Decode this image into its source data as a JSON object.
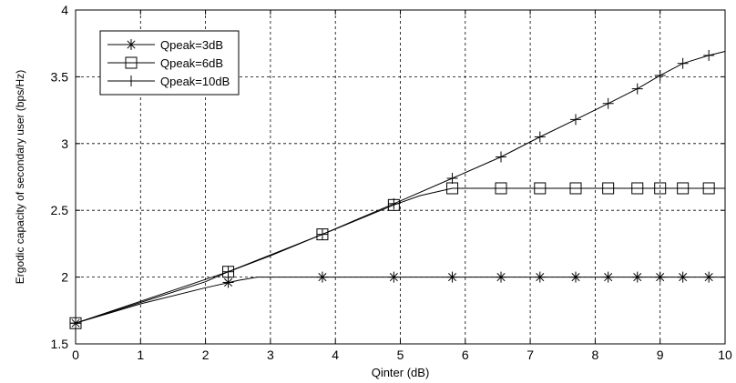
{
  "chart_data": {
    "type": "line",
    "xlabel": "Qinter (dB)",
    "ylabel": "Ergodic capacity of secondary user (bps/Hz)",
    "xlim": [
      0,
      10
    ],
    "ylim": [
      1.5,
      4
    ],
    "x_ticks": [
      "0",
      "1",
      "2",
      "3",
      "4",
      "5",
      "6",
      "7",
      "8",
      "9",
      "10"
    ],
    "y_ticks": [
      "1.5",
      "2",
      "2.5",
      "3",
      "3.5",
      "4"
    ],
    "grid": true,
    "legend_position": "top-left",
    "series": [
      {
        "name": "Qpeak=3dB",
        "marker": "asterisk",
        "line": [
          [
            0,
            1.655
          ],
          [
            1,
            1.8
          ],
          [
            2,
            1.92
          ],
          [
            2.5,
            1.975
          ],
          [
            2.8,
            2.0
          ],
          [
            10,
            2.0
          ]
        ],
        "markers": [
          [
            0,
            1.655
          ],
          [
            2.35,
            1.96
          ],
          [
            3.8,
            2.0
          ],
          [
            4.9,
            2.0
          ],
          [
            5.8,
            2.0
          ],
          [
            6.55,
            2.0
          ],
          [
            7.15,
            2.0
          ],
          [
            7.7,
            2.0
          ],
          [
            8.2,
            2.0
          ],
          [
            8.65,
            2.0
          ],
          [
            9.0,
            2.0
          ],
          [
            9.35,
            2.0
          ],
          [
            9.75,
            2.0
          ]
        ]
      },
      {
        "name": "Qpeak=6dB",
        "marker": "square",
        "line": [
          [
            0,
            1.655
          ],
          [
            1,
            1.81
          ],
          [
            2,
            1.965
          ],
          [
            2.35,
            2.04
          ],
          [
            3,
            2.16
          ],
          [
            3.8,
            2.32
          ],
          [
            4.9,
            2.54
          ],
          [
            5.3,
            2.61
          ],
          [
            5.8,
            2.665
          ],
          [
            10,
            2.665
          ]
        ],
        "markers": [
          [
            0,
            1.655
          ],
          [
            2.35,
            2.04
          ],
          [
            3.8,
            2.32
          ],
          [
            4.9,
            2.54
          ],
          [
            5.8,
            2.665
          ],
          [
            6.55,
            2.665
          ],
          [
            7.15,
            2.665
          ],
          [
            7.7,
            2.665
          ],
          [
            8.2,
            2.665
          ],
          [
            8.65,
            2.665
          ],
          [
            9.0,
            2.665
          ],
          [
            9.35,
            2.665
          ],
          [
            9.75,
            2.665
          ]
        ]
      },
      {
        "name": "Qpeak=10dB",
        "marker": "plus",
        "line": [
          [
            0,
            1.655
          ],
          [
            2.35,
            2.04
          ],
          [
            3.8,
            2.32
          ],
          [
            4.9,
            2.55
          ],
          [
            5.8,
            2.74
          ],
          [
            6.55,
            2.9
          ],
          [
            7.15,
            3.05
          ],
          [
            7.7,
            3.18
          ],
          [
            8.2,
            3.3
          ],
          [
            8.65,
            3.41
          ],
          [
            9.0,
            3.51
          ],
          [
            9.35,
            3.6
          ],
          [
            9.75,
            3.66
          ],
          [
            10,
            3.69
          ]
        ],
        "markers": [
          [
            0,
            1.655
          ],
          [
            2.35,
            2.04
          ],
          [
            3.8,
            2.32
          ],
          [
            4.9,
            2.55
          ],
          [
            5.8,
            2.74
          ],
          [
            6.55,
            2.9
          ],
          [
            7.15,
            3.05
          ],
          [
            7.7,
            3.18
          ],
          [
            8.2,
            3.3
          ],
          [
            8.65,
            3.41
          ],
          [
            9.0,
            3.51
          ],
          [
            9.35,
            3.6
          ],
          [
            9.75,
            3.66
          ]
        ]
      }
    ]
  }
}
